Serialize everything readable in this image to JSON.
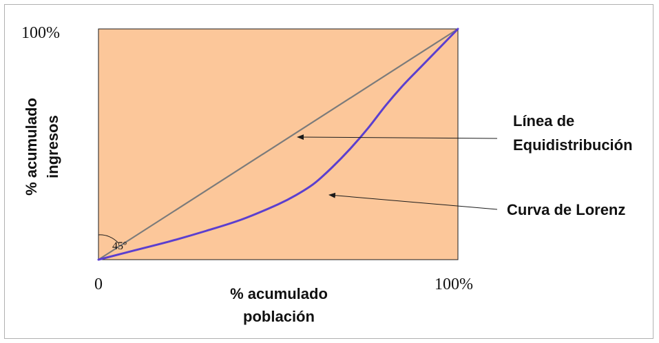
{
  "chart_data": {
    "type": "line",
    "title": "",
    "ylabel_lines": [
      "% acumulado",
      "ingresos"
    ],
    "xlabel_lines": [
      "% acumulado",
      "población"
    ],
    "x_ticks": [
      "0",
      "100%"
    ],
    "y_ticks": [
      "100%"
    ],
    "xlim": [
      0,
      100
    ],
    "ylim": [
      0,
      100
    ],
    "grid": false,
    "angle_label": "45º",
    "series": [
      {
        "name": "Línea de Equidistribución",
        "x": [
          0,
          100
        ],
        "y": [
          0,
          100
        ]
      },
      {
        "name": "Curva de Lorenz",
        "x": [
          0,
          10,
          20,
          30,
          40,
          50,
          55,
          60,
          65,
          70,
          75,
          80,
          85,
          90,
          95,
          100
        ],
        "y": [
          0,
          4,
          8,
          12.5,
          17.5,
          24,
          28,
          33,
          40,
          48,
          57,
          67,
          76,
          84,
          92,
          100
        ]
      }
    ],
    "annotations": [
      {
        "text_lines": [
          "Línea de",
          "Equidistribución"
        ],
        "target": "Línea de Equidistribución",
        "x": 55,
        "y": 55
      },
      {
        "text_lines": [
          "Curva de Lorenz"
        ],
        "target": "Curva de Lorenz",
        "x": 64,
        "y": 28
      }
    ],
    "colors": {
      "plot_fill": "#fcc79a",
      "plot_border": "#1a1a1a",
      "equality_line": "#7b7b7b",
      "lorenz_curve": "#5b3fcf",
      "arrow": "#1a1a1a",
      "text": "#111111"
    }
  }
}
